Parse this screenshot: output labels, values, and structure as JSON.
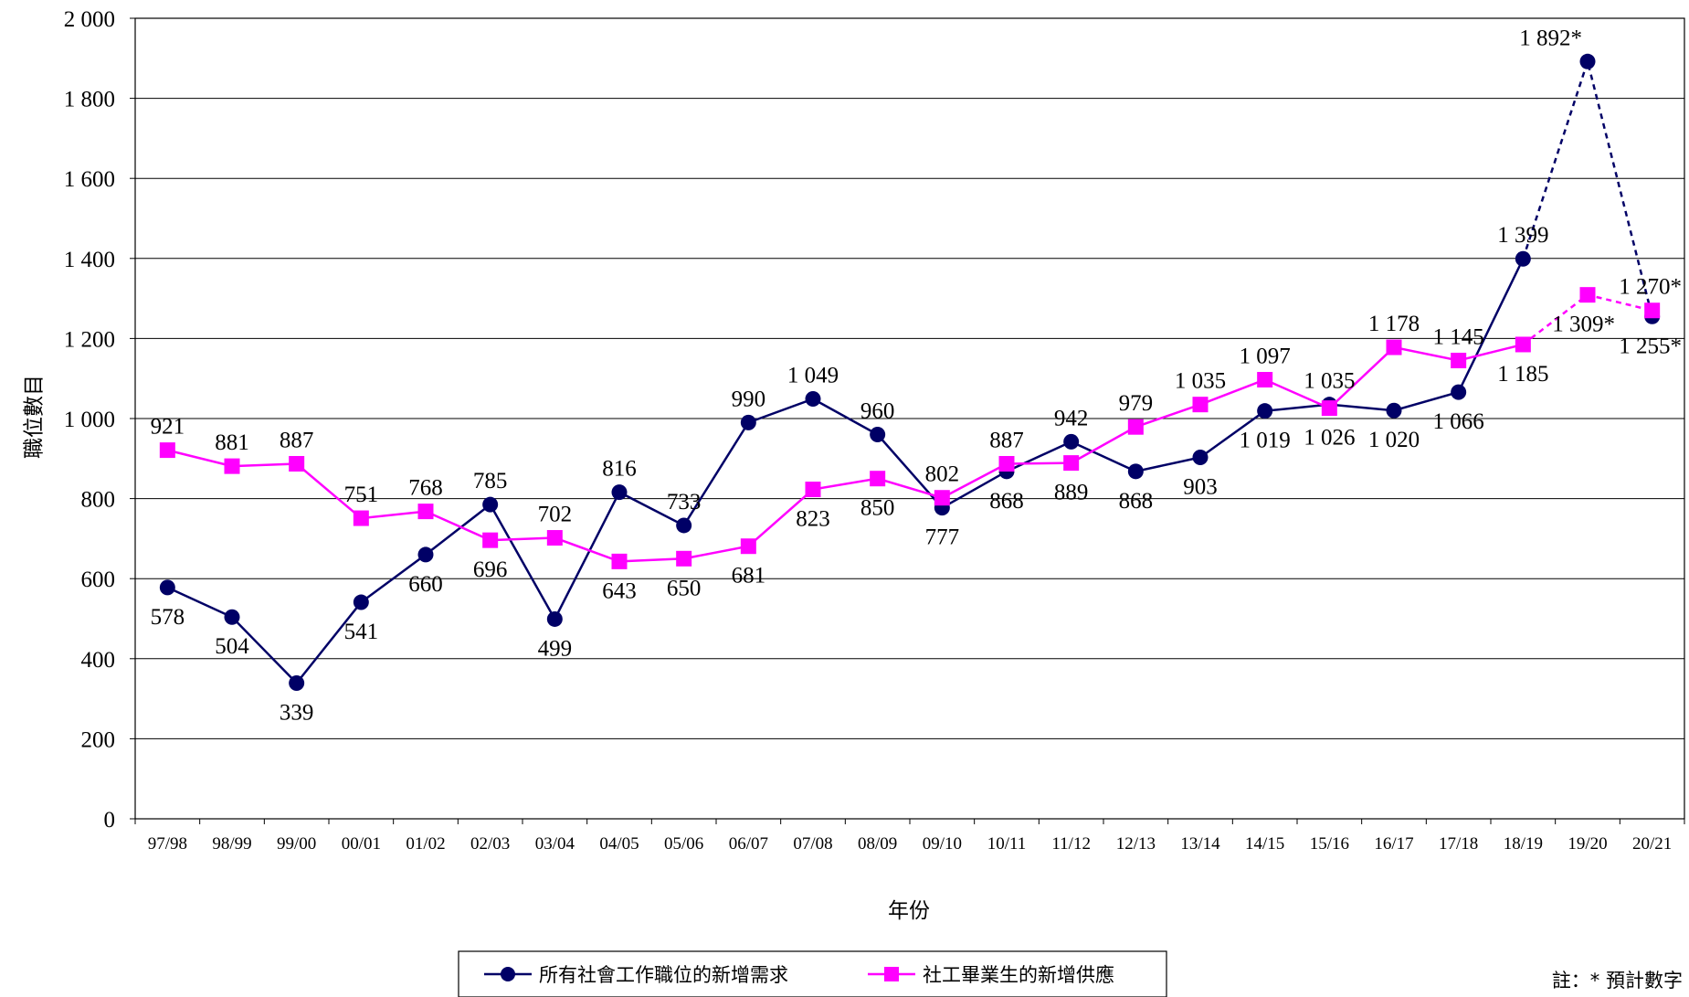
{
  "chart_data": {
    "type": "line",
    "xlabel": "年份",
    "ylabel": "職位數目",
    "ylim": [
      0,
      2000
    ],
    "yticks": [
      0,
      200,
      400,
      600,
      800,
      1000,
      1200,
      1400,
      1600,
      1800,
      2000
    ],
    "ytick_labels": [
      "0",
      "200",
      "400",
      "600",
      "800",
      "1 000",
      "1 200",
      "1 400",
      "1 600",
      "1 800",
      "2 000"
    ],
    "grid": true,
    "legend_position": "bottom",
    "categories": [
      "97/98",
      "98/99",
      "99/00",
      "00/01",
      "01/02",
      "02/03",
      "03/04",
      "04/05",
      "05/06",
      "06/07",
      "07/08",
      "08/09",
      "09/10",
      "10/11",
      "11/12",
      "12/13",
      "13/14",
      "14/15",
      "15/16",
      "16/17",
      "17/18",
      "18/19",
      "19/20",
      "20/21"
    ],
    "series": [
      {
        "name": "所有社會工作職位的新增需求",
        "color": "#000066",
        "marker": "circle",
        "values": [
          578,
          504,
          339,
          541,
          660,
          785,
          499,
          816,
          733,
          990,
          1049,
          960,
          777,
          868,
          942,
          868,
          903,
          1019,
          1035,
          1020,
          1066,
          1399,
          1892,
          1255
        ],
        "labels": [
          "578",
          "504",
          "339",
          "541",
          "660",
          "785",
          "499",
          "816",
          "733",
          "990",
          "1 049",
          "960",
          "777",
          "868",
          "942",
          "868",
          "903",
          "1 019",
          "1 035",
          "1 020",
          "1 066",
          "1 399",
          "1 892*",
          "1 255*"
        ],
        "projected_from_index": 21
      },
      {
        "name": "社工畢業生的新增供應",
        "color": "#ff00ff",
        "marker": "square",
        "values": [
          921,
          881,
          887,
          751,
          768,
          696,
          702,
          643,
          650,
          681,
          823,
          850,
          802,
          887,
          889,
          979,
          1035,
          1097,
          1026,
          1178,
          1145,
          1185,
          1309,
          1270
        ],
        "labels": [
          "921",
          "881",
          "887",
          "751",
          "768",
          "696",
          "702",
          "643",
          "650",
          "681",
          "823",
          "850",
          "802",
          "887",
          "889",
          "979",
          "1 035",
          "1 097",
          "1 026",
          "1 178",
          "1 145",
          "1 185",
          "1 309*",
          "1 270*"
        ],
        "projected_from_index": 21
      }
    ]
  },
  "note": "註：* 預計數字"
}
